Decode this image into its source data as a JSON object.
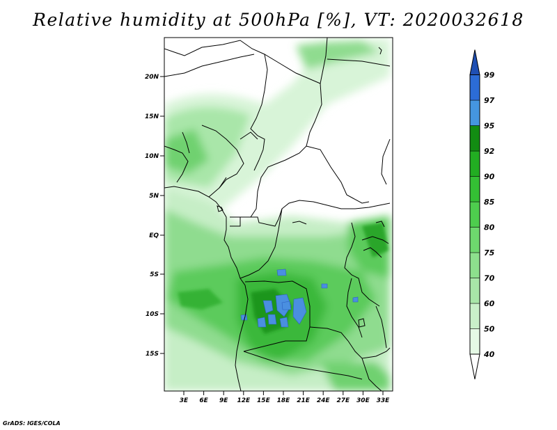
{
  "title": "Relative humidity at 500hPa [%], VT: 2020032618",
  "credit": "GrADS: IGES/COLA",
  "map": {
    "lat_labels": [
      "20N",
      "15N",
      "10N",
      "5N",
      "EQ",
      "5S",
      "10S",
      "15S"
    ],
    "lon_labels": [
      "3E",
      "6E",
      "9E",
      "12E",
      "15E",
      "18E",
      "21E",
      "24E",
      "27E",
      "30E",
      "33E"
    ]
  },
  "colorbar": {
    "levels": [
      "40",
      "50",
      "60",
      "70",
      "75",
      "80",
      "85",
      "90",
      "92",
      "95",
      "97",
      "99"
    ],
    "colors": [
      "#ffffff",
      "#e5f9e5",
      "#c9f0c9",
      "#a8e6a8",
      "#8de08d",
      "#6ed86e",
      "#4ecd4e",
      "#34bf34",
      "#22ad22",
      "#128c12",
      "#4596e0",
      "#2c6cd6",
      "#1f4fb3"
    ]
  }
}
